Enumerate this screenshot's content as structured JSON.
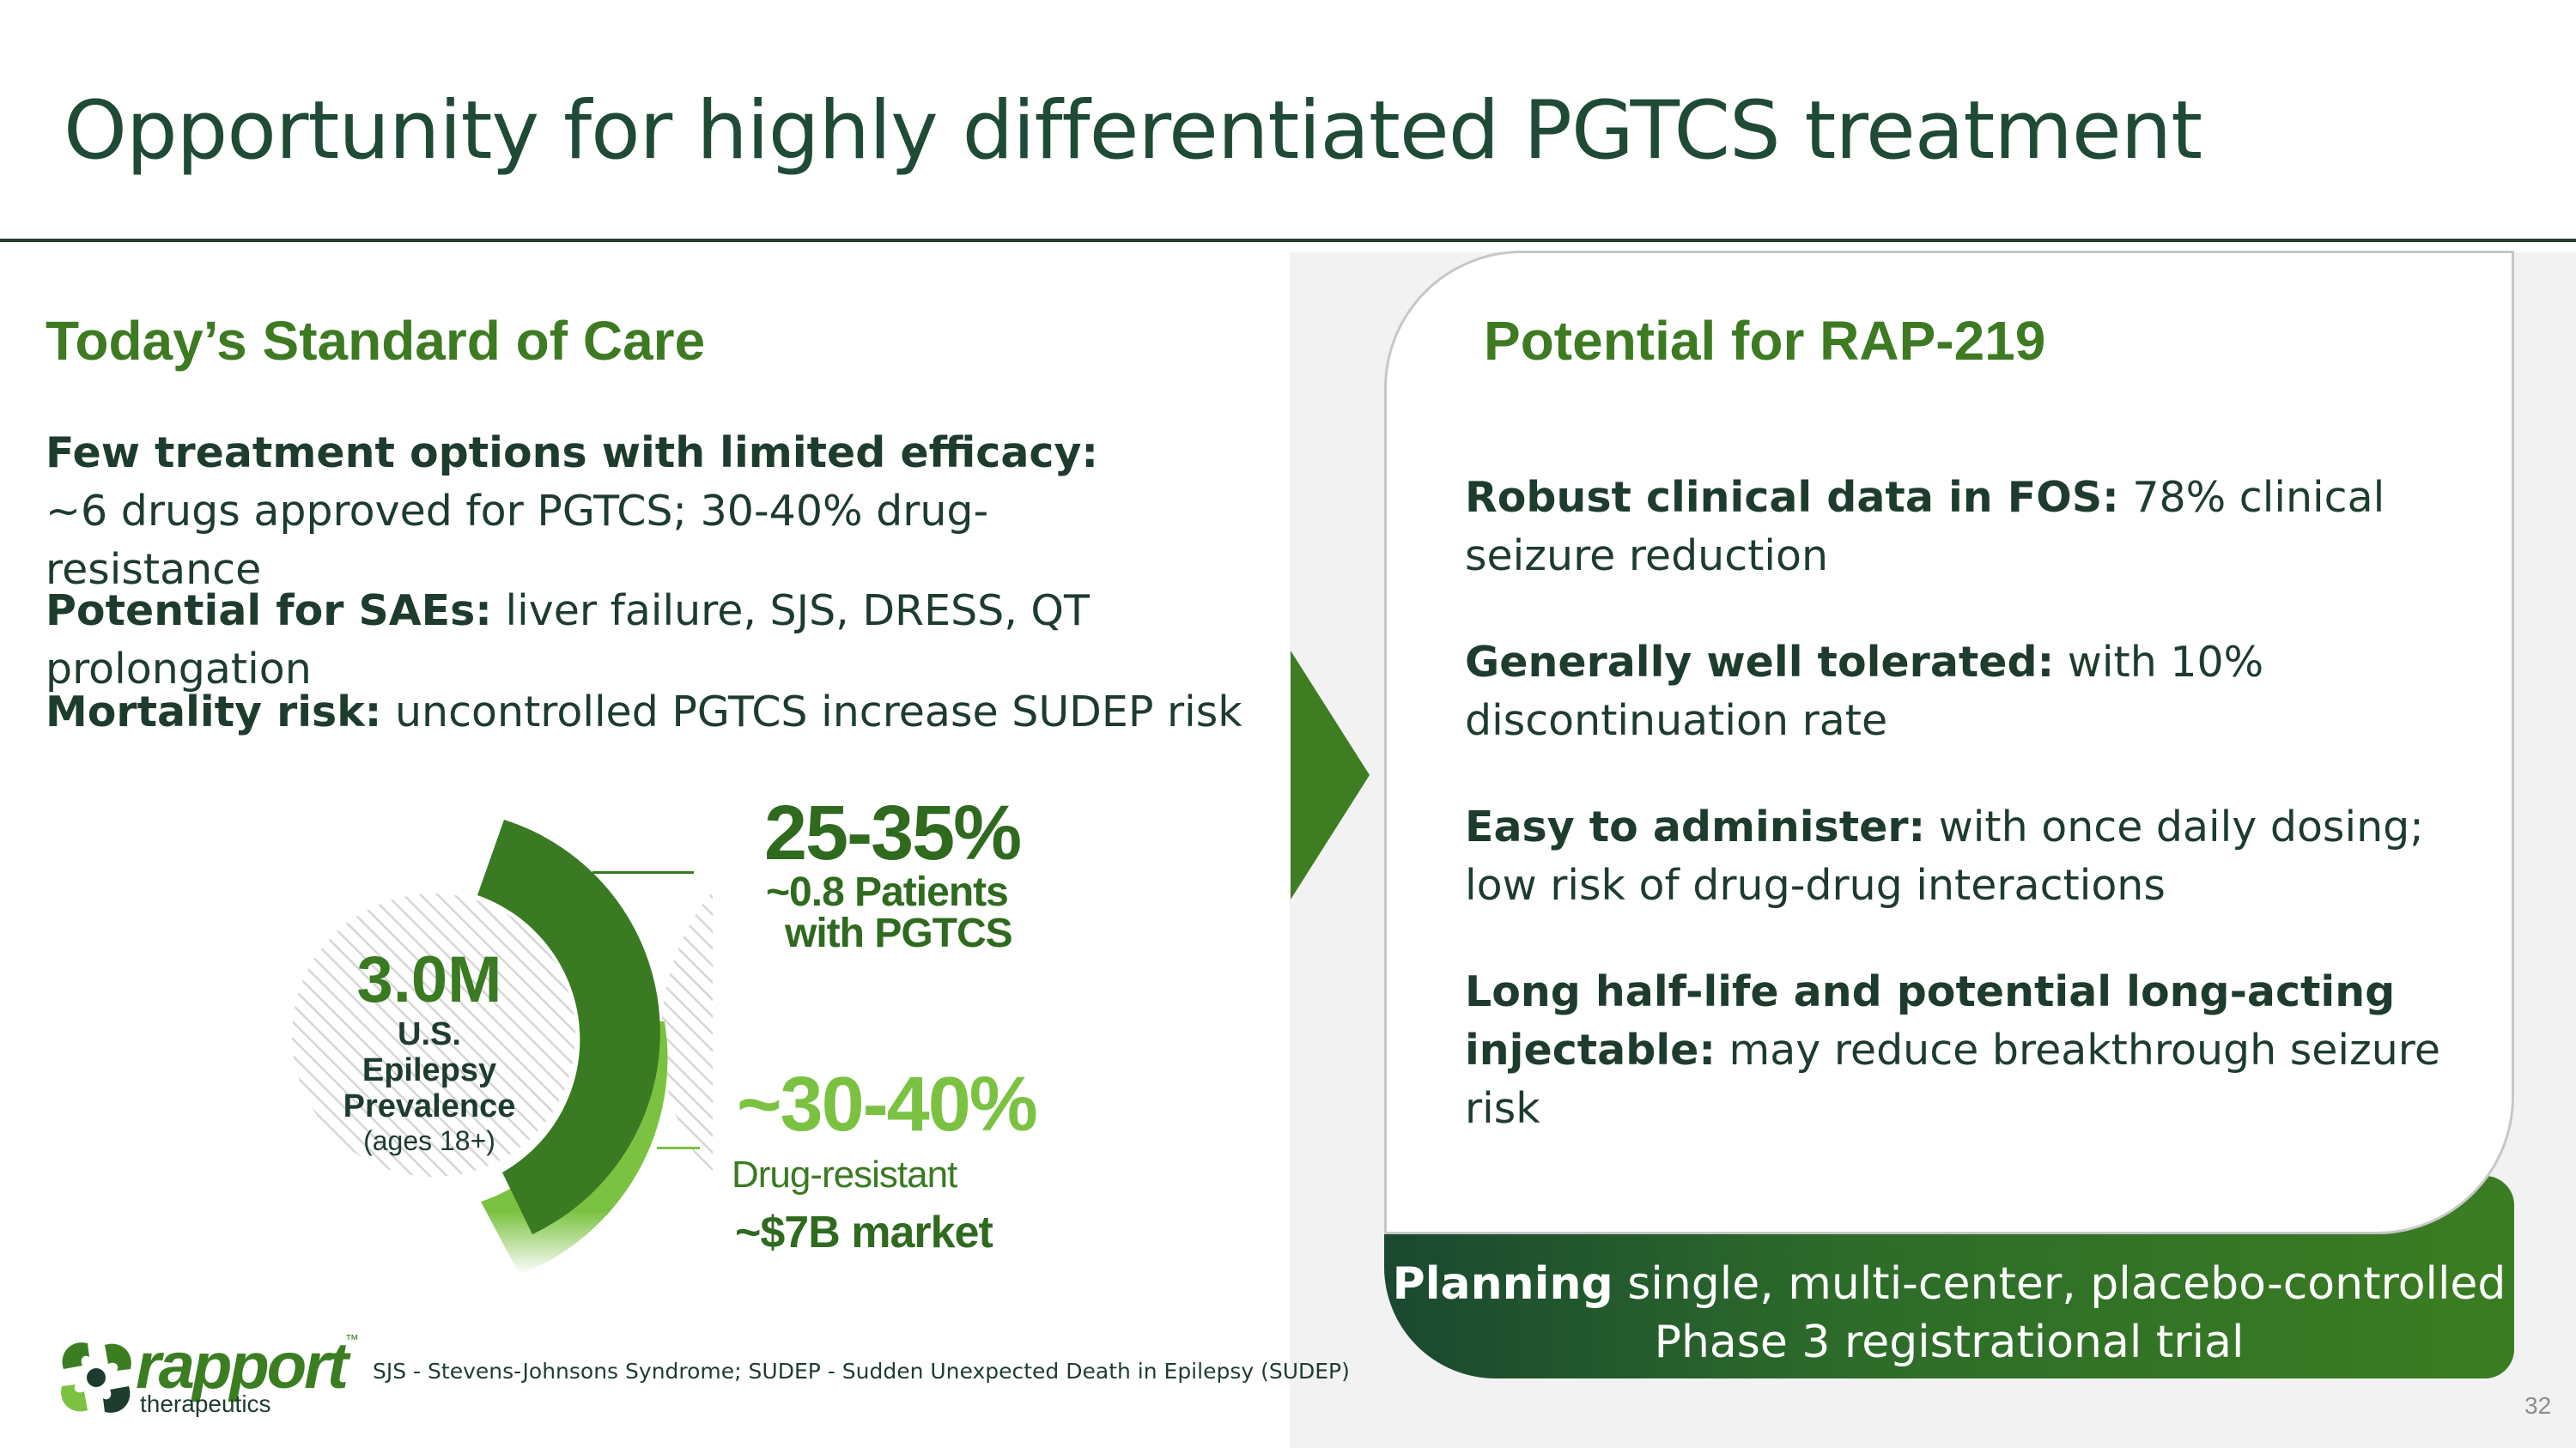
{
  "slide": {
    "title": "Opportunity for highly differentiated PGTCS treatment",
    "page_number": "32"
  },
  "left": {
    "heading": "Today’s Standard of Care",
    "items": [
      {
        "bold": "Few treatment options with limited efficacy:",
        "text": "~6 drugs approved for PGTCS; 30-40% drug-resistance"
      },
      {
        "bold": "Potential for SAEs:",
        "text": "liver failure, SJS, DRESS, QT prolongation"
      },
      {
        "bold": "Mortality risk:",
        "text": "uncontrolled PGTCS increase SUDEP risk"
      }
    ]
  },
  "donut": {
    "center_value": "3.0M",
    "center_label_1": "U.S.",
    "center_label_2": "Epilepsy",
    "center_label_3": "Prevalence",
    "center_note": "(ages 18+)",
    "pgtcs_share": "25-35%",
    "pgtcs_label_1": "~0.8 Patients",
    "pgtcs_label_2": "with PGTCS",
    "resistant_share": "~30-40%",
    "resistant_label": "Drug-resistant",
    "market_label": "~$7B market",
    "colors": {
      "dark_segment": "#3a7a22",
      "light_segment": "#7cc242",
      "hatch": "#d9d9d9"
    }
  },
  "right": {
    "heading": "Potential for RAP-219",
    "items": [
      {
        "bold": "Robust clinical data in FOS:",
        "text": "78% clinical seizure reduction"
      },
      {
        "bold": "Generally well tolerated:",
        "text": "with 10% discontinuation rate"
      },
      {
        "bold": "Easy to administer:",
        "text": "with once daily dosing; low risk of drug-drug interactions"
      },
      {
        "bold": "Long half-life and potential long-acting injectable:",
        "text": "may reduce breakthrough seizure risk"
      }
    ],
    "banner_bold": "Planning",
    "banner_text": "single, multi-center, placebo-controlled Phase 3 registrational trial"
  },
  "footer": {
    "logo_name": "rapport",
    "logo_tm": "™",
    "logo_sub": "therapeutics",
    "footnote": "SJS - Stevens-Johnsons Syndrome; SUDEP - Sudden Unexpected Death in Epilepsy (SUDEP)"
  },
  "colors": {
    "brand_green": "#3d7a22",
    "dark_text": "#1e3c2e",
    "title": "#1f4a36"
  }
}
